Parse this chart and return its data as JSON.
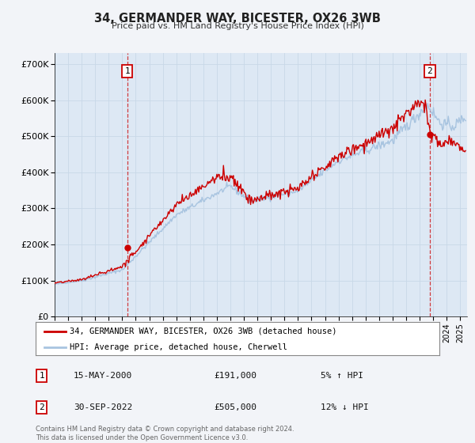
{
  "title": "34, GERMANDER WAY, BICESTER, OX26 3WB",
  "subtitle": "Price paid vs. HM Land Registry's House Price Index (HPI)",
  "legend_line1": "34, GERMANDER WAY, BICESTER, OX26 3WB (detached house)",
  "legend_line2": "HPI: Average price, detached house, Cherwell",
  "annotation1_date": "15-MAY-2000",
  "annotation1_price": "£191,000",
  "annotation1_hpi": "5% ↑ HPI",
  "annotation1_year": 2000.37,
  "annotation1_value": 191000,
  "annotation2_date": "30-SEP-2022",
  "annotation2_price": "£505,000",
  "annotation2_hpi": "12% ↓ HPI",
  "annotation2_year": 2022.75,
  "annotation2_value": 505000,
  "ylabel_ticks": [
    "£0",
    "£100K",
    "£200K",
    "£300K",
    "£400K",
    "£500K",
    "£600K",
    "£700K"
  ],
  "ytick_values": [
    0,
    100000,
    200000,
    300000,
    400000,
    500000,
    600000,
    700000
  ],
  "ylim": [
    0,
    730000
  ],
  "xlim_start": 1995.0,
  "xlim_end": 2025.5,
  "hpi_color": "#a8c4e0",
  "price_color": "#cc0000",
  "marker_color": "#cc0000",
  "grid_color": "#c8d8e8",
  "background_color": "#f2f4f8",
  "plot_bg_color": "#dde8f4",
  "footnote": "Contains HM Land Registry data © Crown copyright and database right 2024.\nThis data is licensed under the Open Government Licence v3.0."
}
